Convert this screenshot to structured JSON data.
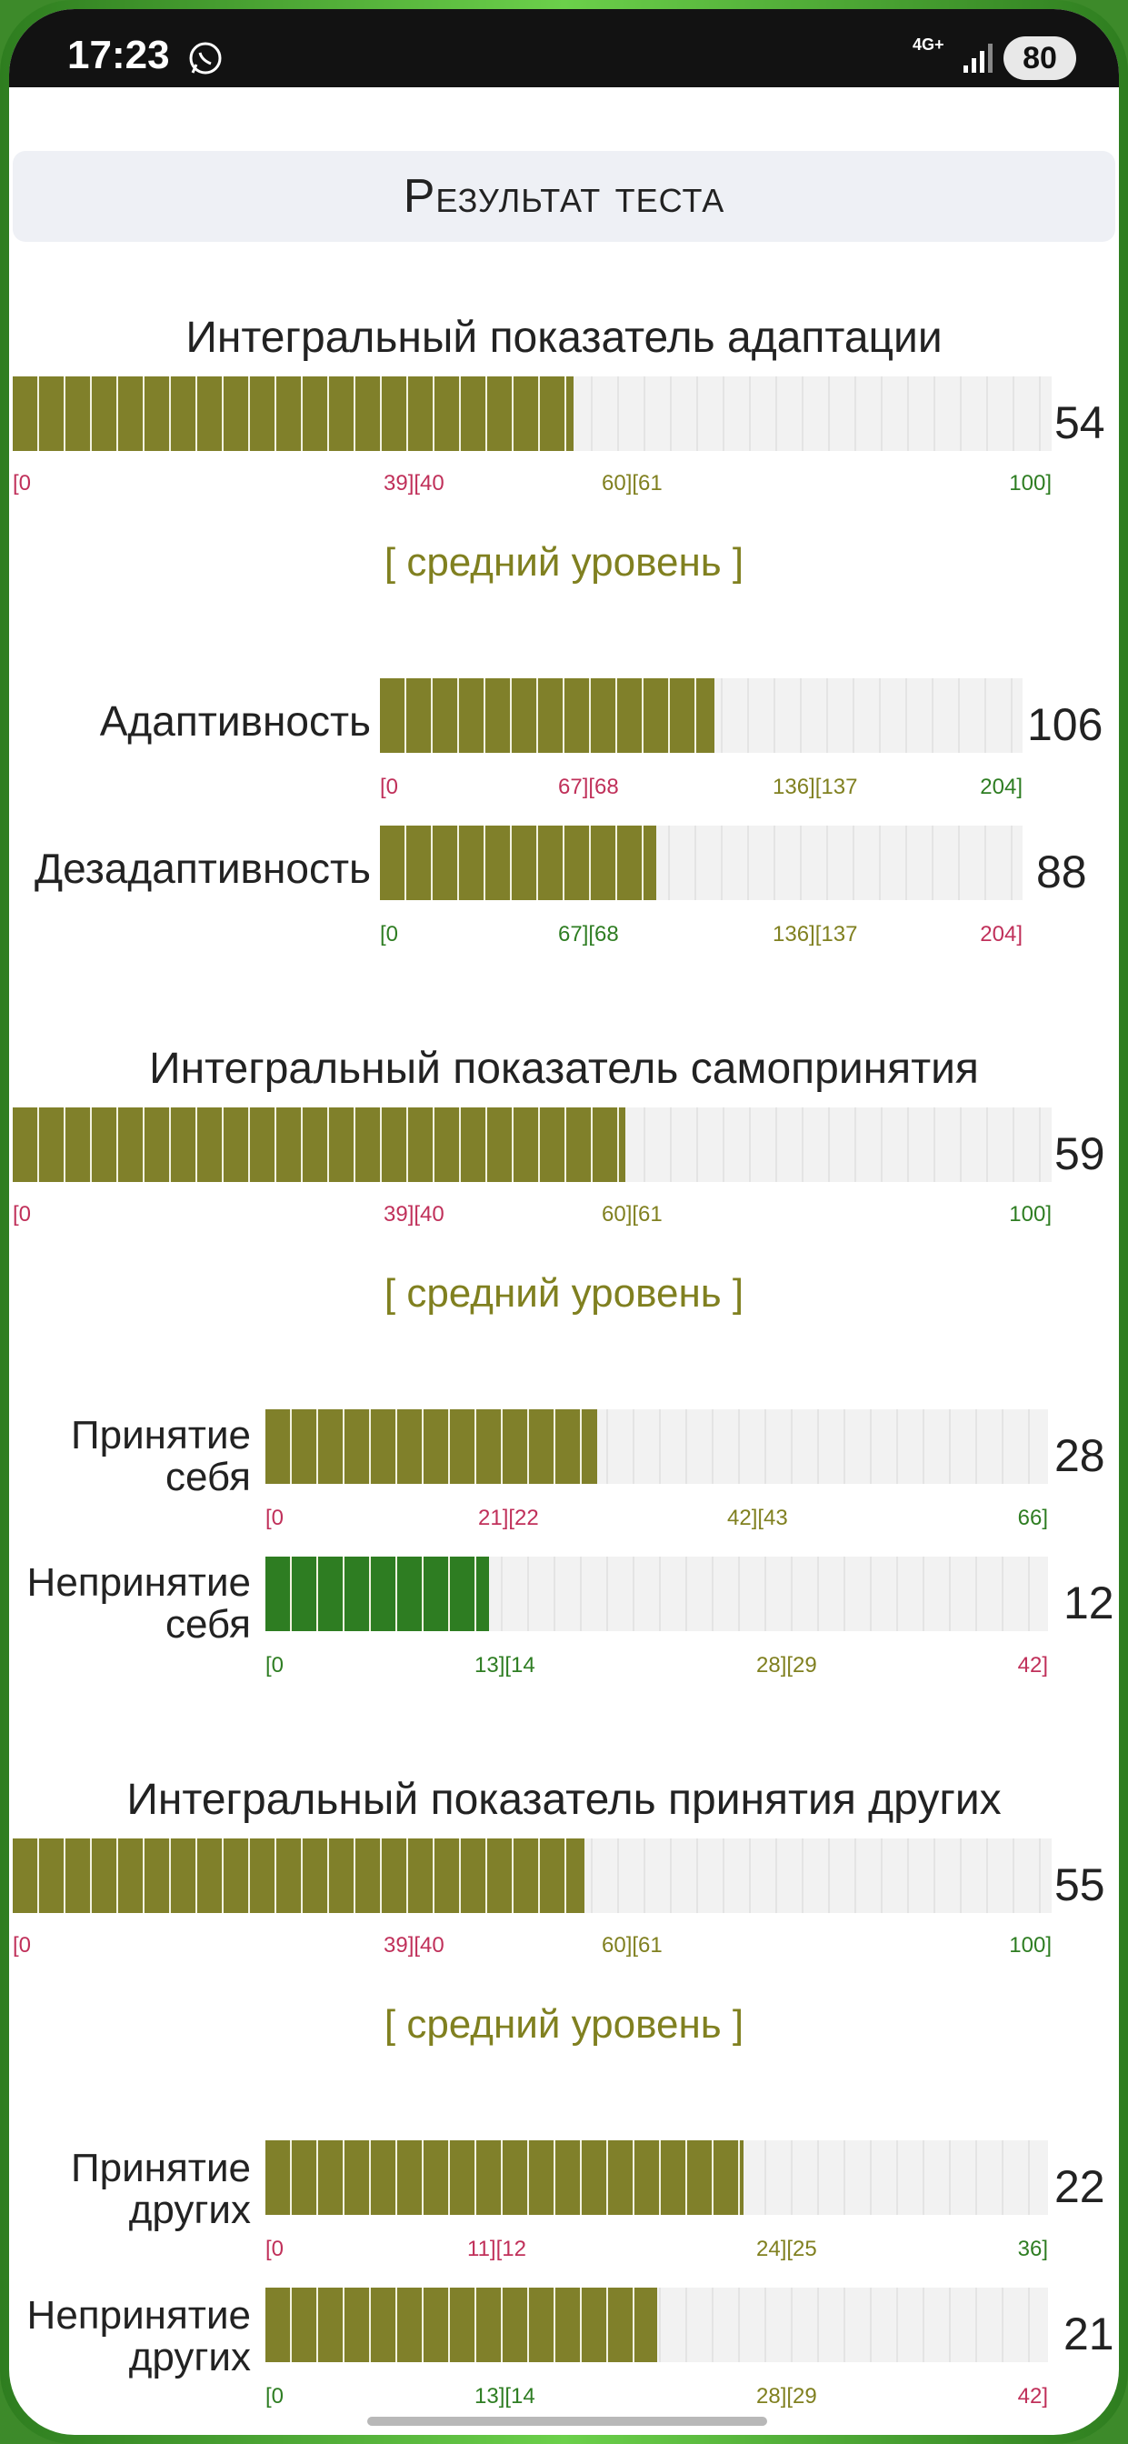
{
  "status_bar": {
    "time": "17:23",
    "network": "4G+",
    "battery": "80"
  },
  "title": "Результат теста",
  "colors": {
    "olive": "#80802a",
    "green": "#2e7d22",
    "red": "#c0305a",
    "olive_text": "#808020",
    "green_text": "#2e7d22"
  },
  "sections": [
    {
      "heading": "Интегральный показатель адаптации",
      "main": {
        "value": "54",
        "fraction": 0.54,
        "scale": [
          "[0",
          "39][40",
          "60][61",
          "100]"
        ]
      },
      "level": "[ средний уровень ]",
      "subs": [
        {
          "label": "Адаптивность",
          "value": "106",
          "fraction": 0.52,
          "scale": [
            "[0",
            "67][68",
            "136][137",
            "204]"
          ]
        },
        {
          "label": "Дезадаптивность",
          "value": "88",
          "fraction": 0.43,
          "scale": [
            "[0",
            "67][68",
            "136][137",
            "204]"
          ]
        }
      ]
    },
    {
      "heading": "Интегральный показатель самопринятия",
      "main": {
        "value": "59",
        "fraction": 0.59,
        "scale": [
          "[0",
          "39][40",
          "60][61",
          "100]"
        ]
      },
      "level": "[ средний уровень ]",
      "subs": [
        {
          "label_line1": "Принятие",
          "label_line2": "себя",
          "value": "28",
          "fraction": 0.424,
          "scale": [
            "[0",
            "21][22",
            "42][43",
            "66]"
          ]
        },
        {
          "label_line1": "Непринятие",
          "label_line2": "себя",
          "value": "12",
          "fraction": 0.286,
          "scale": [
            "[0",
            "13][14",
            "28][29",
            "42]"
          ]
        }
      ]
    },
    {
      "heading": "Интегральный показатель принятия других",
      "main": {
        "value": "55",
        "fraction": 0.55,
        "scale": [
          "[0",
          "39][40",
          "60][61",
          "100]"
        ]
      },
      "level": "[ средний уровень ]",
      "subs": [
        {
          "label_line1": "Принятие",
          "label_line2": "других",
          "value": "22",
          "fraction": 0.611,
          "scale": [
            "[0",
            "11][12",
            "24][25",
            "36]"
          ]
        },
        {
          "label_line1": "Непринятие",
          "label_line2": "других",
          "value": "21",
          "fraction": 0.5,
          "scale": [
            "[0",
            "13][14",
            "28][29",
            "42]"
          ]
        }
      ]
    }
  ]
}
